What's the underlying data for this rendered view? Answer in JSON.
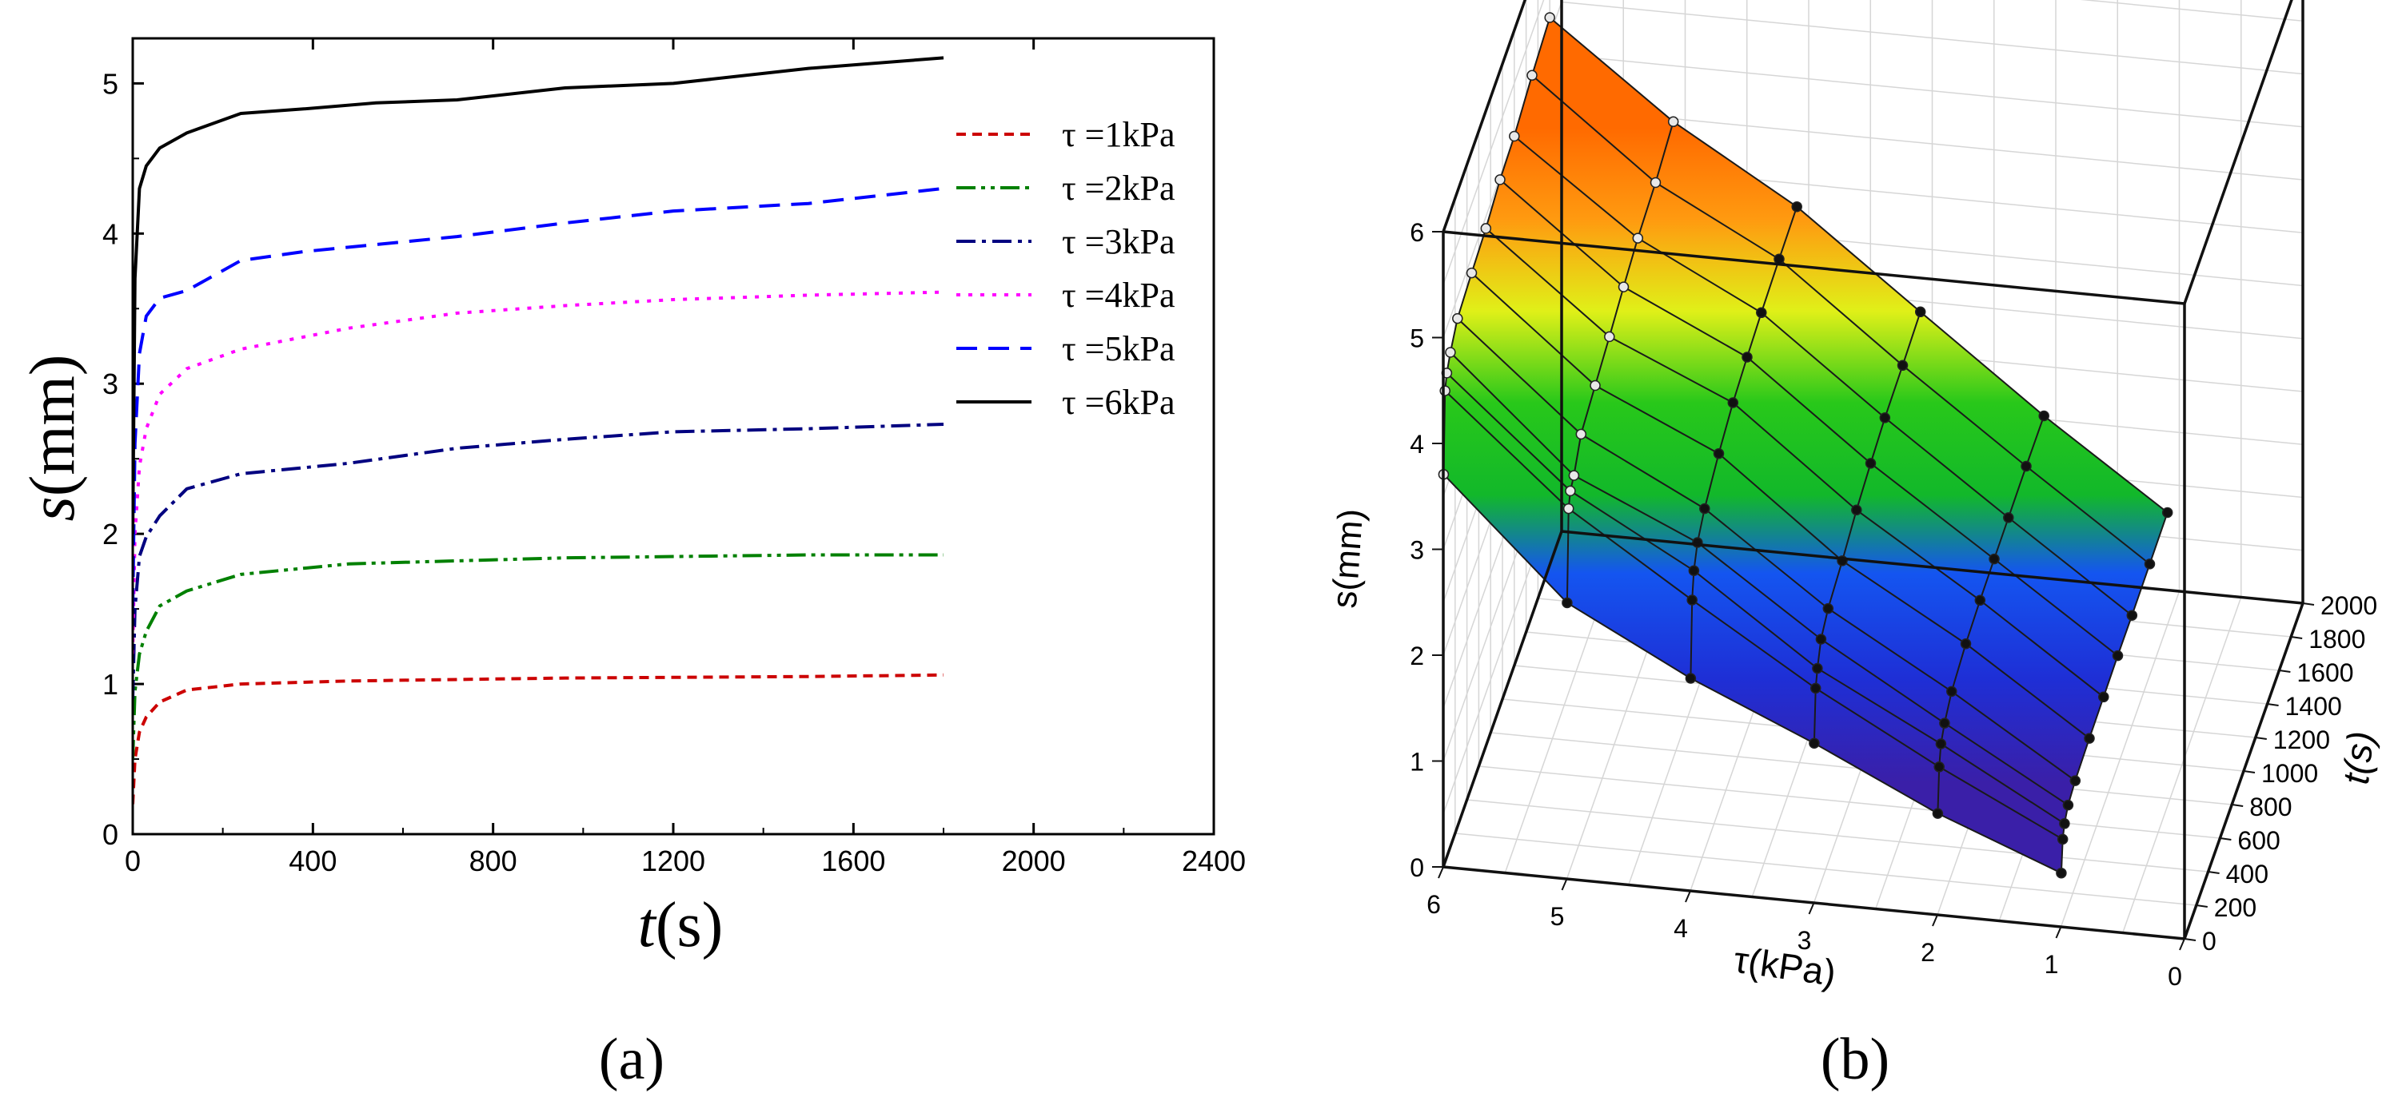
{
  "chart_data": [
    {
      "panel_label": "(a)",
      "type": "line",
      "xlabel_italic": "t",
      "xlabel_rest": "(s)",
      "ylabel_italic": "s",
      "ylabel_rest": "(mm)",
      "xlim": [
        0,
        2400
      ],
      "ylim": [
        0,
        5.3
      ],
      "xticks": [
        0,
        400,
        800,
        1200,
        1600,
        2000,
        2400
      ],
      "xtick_labels": [
        "0",
        "400",
        "800",
        "1200",
        "1600",
        "2000",
        "2400"
      ],
      "yticks": [
        0,
        1,
        2,
        3,
        4,
        5
      ],
      "ytick_labels": [
        "0",
        "1",
        "2",
        "3",
        "4",
        "5"
      ],
      "legend_position": "right",
      "series": [
        {
          "name": "τ =1kPa",
          "legend_label": "τ =1kPa",
          "color": "#cc0000",
          "dash": "dash",
          "x": [
            0,
            5,
            15,
            30,
            60,
            120,
            240,
            480,
            960,
            1500,
            1800
          ],
          "y": [
            0.2,
            0.5,
            0.68,
            0.78,
            0.88,
            0.96,
            1.0,
            1.02,
            1.04,
            1.05,
            1.06
          ]
        },
        {
          "name": "τ =2kPa",
          "legend_label": "τ =2kPa",
          "color": "#008000",
          "dash": "dashdotdot",
          "x": [
            0,
            5,
            15,
            30,
            60,
            120,
            240,
            480,
            960,
            1500,
            1800
          ],
          "y": [
            0.5,
            0.95,
            1.2,
            1.35,
            1.52,
            1.62,
            1.73,
            1.8,
            1.84,
            1.86,
            1.86
          ]
        },
        {
          "name": "τ =3kPa",
          "legend_label": "τ =3kPa",
          "color": "#000080",
          "dash": "dashdot",
          "x": [
            0,
            5,
            15,
            30,
            60,
            120,
            240,
            480,
            720,
            960,
            1200,
            1500,
            1800
          ],
          "y": [
            0.9,
            1.5,
            1.85,
            1.98,
            2.12,
            2.3,
            2.4,
            2.47,
            2.57,
            2.63,
            2.68,
            2.7,
            2.73
          ]
        },
        {
          "name": "τ =4kPa",
          "legend_label": "τ =4kPa",
          "color": "#ff00ff",
          "dash": "dot",
          "x": [
            0,
            5,
            15,
            30,
            60,
            120,
            240,
            480,
            720,
            960,
            1200,
            1500,
            1800
          ],
          "y": [
            1.2,
            2.0,
            2.45,
            2.7,
            2.93,
            3.1,
            3.23,
            3.37,
            3.47,
            3.52,
            3.56,
            3.59,
            3.61
          ]
        },
        {
          "name": "τ =5kPa",
          "legend_label": "τ =5kPa",
          "color": "#0000ff",
          "dash": "longdash",
          "x": [
            0,
            5,
            15,
            30,
            60,
            120,
            240,
            380,
            720,
            960,
            1200,
            1500,
            1800
          ],
          "y": [
            1.5,
            2.6,
            3.2,
            3.45,
            3.57,
            3.62,
            3.82,
            3.88,
            3.98,
            4.07,
            4.15,
            4.2,
            4.3
          ]
        },
        {
          "name": "τ =6kPa",
          "legend_label": "τ =6kPa",
          "color": "#000000",
          "dash": "solid",
          "x": [
            0,
            5,
            15,
            30,
            60,
            120,
            240,
            380,
            540,
            720,
            960,
            1200,
            1500,
            1800
          ],
          "y": [
            2.0,
            3.7,
            4.3,
            4.45,
            4.57,
            4.67,
            4.8,
            4.83,
            4.87,
            4.89,
            4.97,
            5.0,
            5.1,
            5.17
          ]
        }
      ]
    },
    {
      "panel_label": "(b)",
      "type": "surface3d",
      "xlabel": "τ(kPa)",
      "ylabel": "t(s)",
      "zlabel": "s(mm)",
      "tau_ticks": [
        "0",
        "1",
        "2",
        "3",
        "4",
        "5",
        "6"
      ],
      "t_ticks": [
        "0",
        "200",
        "400",
        "600",
        "800",
        "1000",
        "1200",
        "1400",
        "1600",
        "1800",
        "2000"
      ],
      "s_ticks": [
        "0",
        "1",
        "2",
        "3",
        "4",
        "5",
        "6"
      ],
      "tau": [
        1,
        2,
        3,
        4,
        5,
        6
      ],
      "t": [
        5,
        30,
        60,
        120,
        240,
        480,
        720,
        960,
        1200,
        1500,
        1800
      ],
      "s": [
        [
          0.5,
          0.78,
          0.88,
          0.96,
          1.0,
          1.02,
          1.03,
          1.04,
          1.04,
          1.05,
          1.06
        ],
        [
          0.95,
          1.35,
          1.52,
          1.62,
          1.73,
          1.8,
          1.83,
          1.84,
          1.85,
          1.86,
          1.86
        ],
        [
          1.5,
          1.98,
          2.12,
          2.3,
          2.4,
          2.47,
          2.57,
          2.63,
          2.68,
          2.7,
          2.73
        ],
        [
          2.0,
          2.7,
          2.93,
          3.1,
          3.23,
          3.37,
          3.47,
          3.52,
          3.56,
          3.59,
          3.61
        ],
        [
          2.6,
          3.45,
          3.57,
          3.62,
          3.82,
          3.9,
          3.98,
          4.07,
          4.15,
          4.2,
          4.3
        ],
        [
          3.7,
          4.45,
          4.57,
          4.67,
          4.8,
          4.85,
          4.89,
          4.97,
          5.0,
          5.1,
          5.17
        ]
      ]
    }
  ]
}
